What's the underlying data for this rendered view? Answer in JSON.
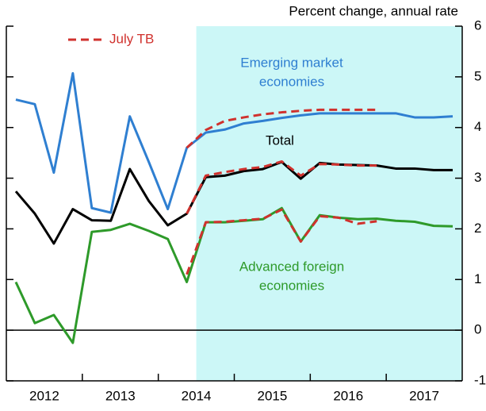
{
  "chart_data": {
    "type": "line",
    "y_axis_label": "Percent change, annual rate",
    "legend": "July TB",
    "legend_color": "#d0312d",
    "shaded_region": [
      2014.5,
      2018
    ],
    "shade_color": "#ccf7f7",
    "xlim": [
      2012,
      2018
    ],
    "ylim": [
      -1,
      6
    ],
    "yticks": [
      -1,
      0,
      1,
      2,
      3,
      4,
      5,
      6
    ],
    "xticks": [
      {
        "value": 2012.5,
        "label": "2012"
      },
      {
        "value": 2013.5,
        "label": "2013"
      },
      {
        "value": 2014.5,
        "label": "2014"
      },
      {
        "value": 2015.5,
        "label": "2015"
      },
      {
        "value": 2016.5,
        "label": "2016"
      },
      {
        "value": 2017.5,
        "label": "2017"
      }
    ],
    "x": [
      2012.125,
      2012.375,
      2012.625,
      2012.875,
      2013.125,
      2013.375,
      2013.625,
      2013.875,
      2014.125,
      2014.375,
      2014.625,
      2014.875,
      2015.125,
      2015.375,
      2015.625,
      2015.875,
      2016.125,
      2016.375,
      2016.625,
      2016.875,
      2017.125,
      2017.375,
      2017.625,
      2017.875
    ],
    "series": [
      {
        "name": [
          "Emerging market",
          "economies"
        ],
        "color": "#2f7fd1",
        "values": [
          4.55,
          4.46,
          3.11,
          5.07,
          2.41,
          2.32,
          4.22,
          3.32,
          2.39,
          3.6,
          3.9,
          3.96,
          4.08,
          4.13,
          4.19,
          4.24,
          4.28,
          4.28,
          4.28,
          4.28,
          4.28,
          4.2,
          4.2,
          4.22
        ],
        "july_tb": [
          null,
          null,
          null,
          null,
          null,
          null,
          null,
          null,
          null,
          3.6,
          3.95,
          4.13,
          4.2,
          4.26,
          4.3,
          4.33,
          4.35,
          4.35,
          4.35,
          4.35,
          null,
          null,
          null,
          null
        ]
      },
      {
        "name": [
          "Total"
        ],
        "color": "#000000",
        "values": [
          2.74,
          2.3,
          1.71,
          2.39,
          2.17,
          2.16,
          3.18,
          2.55,
          2.07,
          2.3,
          3.02,
          3.05,
          3.14,
          3.18,
          3.32,
          2.99,
          3.3,
          3.27,
          3.26,
          3.25,
          3.19,
          3.19,
          3.16,
          3.16
        ],
        "july_tb": [
          null,
          null,
          null,
          null,
          null,
          null,
          null,
          null,
          null,
          2.3,
          3.05,
          3.12,
          3.18,
          3.22,
          3.33,
          3.05,
          3.28,
          3.27,
          3.25,
          3.25,
          null,
          null,
          null,
          null
        ]
      },
      {
        "name": [
          "Advanced foreign",
          "economies"
        ],
        "color": "#2e9a2a",
        "values": [
          0.95,
          0.14,
          0.3,
          -0.25,
          1.94,
          1.98,
          2.1,
          1.96,
          1.8,
          0.95,
          2.13,
          2.13,
          2.16,
          2.19,
          2.41,
          1.75,
          2.27,
          2.22,
          2.19,
          2.2,
          2.16,
          2.14,
          2.06,
          2.05
        ],
        "july_tb": [
          null,
          null,
          null,
          null,
          null,
          null,
          null,
          null,
          null,
          1.1,
          2.13,
          2.14,
          2.17,
          2.2,
          2.38,
          1.75,
          2.25,
          2.22,
          2.1,
          2.15,
          null,
          null,
          null,
          null
        ]
      }
    ]
  }
}
